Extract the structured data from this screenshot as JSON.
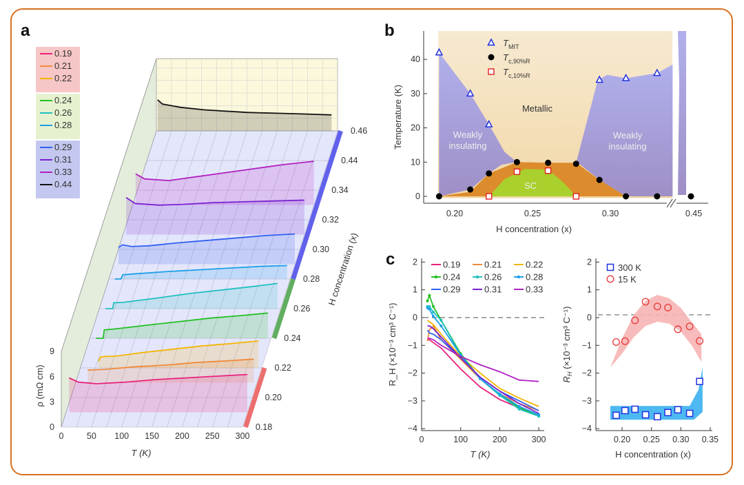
{
  "panels": {
    "a": "a",
    "b": "b",
    "c": "c"
  },
  "chart_data": [
    {
      "id": "a",
      "type": "line",
      "projection": "3d",
      "xlabel": "T (K)",
      "ylabel": "ρ (mΩ cm)",
      "zlabel": "H concentration (x)",
      "x_ticks": [
        "0",
        "50",
        "100",
        "150",
        "200",
        "250",
        "300"
      ],
      "y_ticks": [
        "0",
        "3",
        "6",
        "9"
      ],
      "z_ticks": [
        "0.18",
        "0.20",
        "0.22",
        "0.24",
        "0.26",
        "0.28",
        "0.30",
        "0.32",
        "0.34",
        "0.44",
        "0.46"
      ],
      "z_break": [
        0.34,
        0.44
      ],
      "legend_groups": [
        {
          "color": "#f7c6c6",
          "items": [
            "0.19",
            "0.21",
            "0.22"
          ]
        },
        {
          "color": "#e6f2cf",
          "items": [
            "0.24",
            "0.26",
            "0.28"
          ]
        },
        {
          "color": "#c4c8f0",
          "items": [
            "0.29",
            "0.31",
            "0.33",
            "0.44"
          ]
        }
      ],
      "series": [
        {
          "name": "0.19",
          "x_conc": 0.19,
          "color": "#e8207a",
          "T": [
            5,
            20,
            50,
            100,
            150,
            200,
            250,
            300
          ],
          "rho": [
            4.1,
            3.6,
            3.4,
            3.6,
            3.9,
            4.1,
            4.3,
            4.5
          ]
        },
        {
          "name": "0.21",
          "x_conc": 0.21,
          "color": "#f08a3a",
          "T": [
            20,
            50,
            100,
            150,
            200,
            250,
            295
          ],
          "rho": [
            1.5,
            1.6,
            1.9,
            2.1,
            2.4,
            2.6,
            2.8
          ]
        },
        {
          "name": "0.22",
          "x_conc": 0.22,
          "color": "#f5b400",
          "T": [
            30,
            34,
            40,
            60,
            100,
            150,
            200,
            250,
            295
          ],
          "rho": [
            0.8,
            1.3,
            1.35,
            1.4,
            1.8,
            2.2,
            2.6,
            2.9,
            3.2
          ]
        },
        {
          "name": "0.24",
          "x_conc": 0.24,
          "color": "#22c022",
          "T": [
            10,
            22,
            24,
            40,
            100,
            150,
            200,
            250,
            295
          ],
          "rho": [
            0,
            0,
            1.0,
            1.1,
            1.6,
            2.0,
            2.4,
            2.7,
            3.0
          ]
        },
        {
          "name": "0.26",
          "x_conc": 0.26,
          "color": "#20c0c0",
          "T": [
            10,
            22,
            24,
            40,
            100,
            150,
            200,
            250,
            295
          ],
          "rho": [
            0,
            0,
            0.7,
            0.75,
            1.3,
            1.8,
            2.2,
            2.6,
            3.0
          ]
        },
        {
          "name": "0.28",
          "x_conc": 0.28,
          "color": "#1aa0e8",
          "T": [
            10,
            20,
            23,
            40,
            100,
            150,
            200,
            250,
            295
          ],
          "rho": [
            0,
            0,
            0.5,
            0.6,
            0.9,
            1.1,
            1.3,
            1.5,
            1.6
          ]
        },
        {
          "name": "0.29",
          "x_conc": 0.29,
          "color": "#3060f0",
          "T": [
            8,
            15,
            30,
            60,
            100,
            150,
            200,
            250,
            300
          ],
          "rho": [
            2.0,
            2.3,
            2.1,
            2.2,
            2.5,
            2.8,
            3.1,
            3.4,
            3.6
          ]
        },
        {
          "name": "0.31",
          "x_conc": 0.31,
          "color": "#7a20d0",
          "T": [
            5,
            20,
            60,
            100,
            150,
            200,
            250,
            300
          ],
          "rho": [
            4.4,
            3.7,
            3.5,
            3.6,
            3.8,
            3.9,
            4.0,
            4.1
          ]
        },
        {
          "name": "0.33",
          "x_conc": 0.33,
          "color": "#b020c0",
          "T": [
            5,
            20,
            60,
            100,
            150,
            200,
            250,
            300
          ],
          "rho": [
            3.7,
            3.1,
            2.9,
            3.3,
            3.8,
            4.3,
            4.8,
            5.2
          ]
        },
        {
          "name": "0.44",
          "x_conc": 0.44,
          "color": "#111111",
          "T": [
            2,
            10,
            40,
            80,
            150,
            200,
            250,
            290
          ],
          "rho": [
            3.7,
            3.2,
            2.8,
            2.5,
            2.2,
            2.1,
            2.0,
            1.9
          ]
        }
      ],
      "axis_band_colors": {
        "0.18-0.22": "#e84a4a",
        "0.22-0.28": "#3a9a3a",
        "0.28-0.46": "#3a3ae8"
      }
    },
    {
      "id": "b",
      "type": "scatter",
      "xlabel": "H concentration (x)",
      "ylabel": "Temperature (K)",
      "x_ticks": [
        "0.20",
        "0.25",
        "0.30",
        "0.45"
      ],
      "y_ticks": [
        "0",
        "10",
        "20",
        "30",
        "40"
      ],
      "ylim": [
        -2,
        48
      ],
      "x_break": [
        0.34,
        0.44
      ],
      "legend_placement": "top-left",
      "region_labels": {
        "metallic": "Metallic",
        "weak_left": [
          "Weakly",
          "insulating"
        ],
        "weak_right": [
          "Weakly",
          "insulating"
        ],
        "sc": "SC"
      },
      "series": [
        {
          "name": "T_MIT",
          "label_main": "T",
          "label_sub": "MIT",
          "marker": "open-triangle",
          "color": "#2030e0",
          "x": [
            0.19,
            0.21,
            0.222,
            0.293,
            0.31,
            0.33
          ],
          "y": [
            42,
            30,
            21,
            34,
            34.5,
            36
          ]
        },
        {
          "name": "T_c,90%R",
          "label_main": "T",
          "label_sub": "c,90%R",
          "marker": "filled-circle",
          "color": "#000000",
          "x": [
            0.19,
            0.21,
            0.222,
            0.24,
            0.26,
            0.278,
            0.293,
            0.31,
            0.33,
            0.44
          ],
          "y": [
            0,
            2,
            6.7,
            10,
            9.8,
            9.5,
            4.8,
            0,
            0,
            0
          ]
        },
        {
          "name": "T_c,10%R",
          "label_main": "T",
          "label_sub": "c,10%R",
          "marker": "open-square",
          "color": "#e02020",
          "x": [
            0.222,
            0.24,
            0.26,
            0.278
          ],
          "y": [
            0,
            7.2,
            7.5,
            0
          ]
        }
      ],
      "regions": {
        "metallic_color": "#f1d7a6",
        "insulating_color": "#a7a3dc",
        "fluct_color": "#dc8c2c",
        "sc_color": "#a9d02c",
        "insulating_left": [
          [
            0.19,
            42
          ],
          [
            0.21,
            30
          ],
          [
            0.222,
            21
          ],
          [
            0.232,
            13
          ],
          [
            0.24,
            10
          ],
          [
            0.23,
            9.2
          ],
          [
            0.222,
            6.7
          ],
          [
            0.21,
            2
          ],
          [
            0.19,
            0
          ]
        ],
        "insulating_right": [
          [
            0.278,
            9.8
          ],
          [
            0.285,
            22
          ],
          [
            0.292,
            34
          ],
          [
            0.298,
            35.5
          ],
          [
            0.31,
            34.5
          ],
          [
            0.33,
            36
          ],
          [
            0.34,
            38.5
          ],
          [
            0.34,
            0
          ],
          [
            0.31,
            0
          ],
          [
            0.293,
            4.8
          ],
          [
            0.28,
            9.5
          ]
        ],
        "fluct": [
          [
            0.19,
            0
          ],
          [
            0.21,
            1.3
          ],
          [
            0.222,
            6.7
          ],
          [
            0.24,
            10
          ],
          [
            0.26,
            9.8
          ],
          [
            0.278,
            9.8
          ],
          [
            0.293,
            4.8
          ],
          [
            0.31,
            0
          ]
        ],
        "sc": [
          [
            0.222,
            0
          ],
          [
            0.232,
            5
          ],
          [
            0.245,
            8
          ],
          [
            0.26,
            7.8
          ],
          [
            0.27,
            4
          ],
          [
            0.278,
            0
          ]
        ]
      }
    },
    {
      "id": "c-left",
      "type": "line",
      "xlabel": "T (K)",
      "ylabel": "R_H (×10⁻³ cm³ C⁻¹)",
      "ylabel_main": "R",
      "ylabel_sub": "H",
      "ylabel_rest": " (×10⁻³ cm³ C⁻¹)",
      "x_ticks": [
        "0",
        "100",
        "200",
        "300"
      ],
      "y_ticks": [
        "-4",
        "-3",
        "-2",
        "-1",
        "0",
        "1",
        "2"
      ],
      "xlim": [
        0,
        300
      ],
      "ylim": [
        -4,
        2.1
      ],
      "reference_line": 0,
      "legend_placement": "top",
      "x": [
        15,
        20,
        30,
        50,
        100,
        150,
        200,
        250,
        300
      ],
      "series": [
        {
          "name": "0.19",
          "color": "#e8207a",
          "values": [
            -0.8,
            -0.8,
            -0.9,
            -1.1,
            -1.85,
            -2.5,
            -2.95,
            -3.25,
            -3.5
          ]
        },
        {
          "name": "0.21",
          "color": "#f08a3a",
          "values": [
            -0.85,
            -0.45,
            -0.3,
            -0.8,
            -1.5,
            -2.2,
            -2.75,
            -3.1,
            -3.35
          ]
        },
        {
          "name": "0.22",
          "color": "#f5b400",
          "values": [
            -0.1,
            -0.15,
            -0.25,
            -0.6,
            -1.4,
            -2.0,
            -2.55,
            -2.9,
            -3.2
          ]
        },
        {
          "name": "0.24",
          "color": "#22c022",
          "marker": "dot",
          "values": [
            0.6,
            0.8,
            0.4,
            -0.1,
            -1.3,
            -2.2,
            -2.8,
            -3.25,
            -3.55
          ]
        },
        {
          "name": "0.26",
          "color": "#20c0c0",
          "marker": "dot",
          "values": [
            0.4,
            0.4,
            0.2,
            -0.1,
            -1.35,
            -2.2,
            -2.8,
            -3.3,
            -3.55
          ]
        },
        {
          "name": "0.28",
          "color": "#1aa0e8",
          "marker": "dot",
          "values": [
            0.35,
            0.3,
            0.05,
            -0.3,
            -1.35,
            -2.2,
            -2.75,
            -3.2,
            -3.5
          ]
        },
        {
          "name": "0.29",
          "color": "#3060f0",
          "values": [
            -0.45,
            -0.55,
            -0.6,
            -0.8,
            -1.45,
            -2.15,
            -2.65,
            -3.0,
            -3.35
          ]
        },
        {
          "name": "0.31",
          "color": "#7a20d0",
          "values": [
            -0.3,
            -0.3,
            -0.4,
            -0.7,
            -1.45,
            -2.15,
            -2.65,
            -3.1,
            -3.45
          ]
        },
        {
          "name": "0.33",
          "color": "#b020c0",
          "values": [
            -0.75,
            -0.75,
            -0.8,
            -1.0,
            -1.4,
            -1.7,
            -1.95,
            -2.25,
            -2.3
          ]
        }
      ]
    },
    {
      "id": "c-right",
      "type": "scatter",
      "xlabel": "H concentration (x)",
      "ylabel_main": "R",
      "ylabel_sub": "H",
      "ylabel_rest": " (×10⁻³ cm³ C⁻¹)",
      "x_ticks": [
        "0.20",
        "0.25",
        "0.30",
        "0.35"
      ],
      "y_ticks": [
        "-4",
        "-3",
        "-2",
        "-1",
        "0",
        "1",
        "2"
      ],
      "xlim": [
        0.165,
        0.35
      ],
      "ylim": [
        -4,
        2.1
      ],
      "reference_line": 0.1,
      "legend_placement": "top-left",
      "series": [
        {
          "name": "300 K",
          "marker": "open-square",
          "color": "#2030e0",
          "band_color": "#3ab0f0",
          "x": [
            0.19,
            0.205,
            0.222,
            0.24,
            0.26,
            0.278,
            0.295,
            0.315,
            0.332
          ],
          "y": [
            -3.52,
            -3.35,
            -3.3,
            -3.5,
            -3.57,
            -3.42,
            -3.32,
            -3.45,
            -2.3
          ]
        },
        {
          "name": "15 K",
          "marker": "open-circle",
          "color": "#e84040",
          "band_color": "#f7b4b4",
          "x": [
            0.19,
            0.205,
            0.222,
            0.24,
            0.26,
            0.278,
            0.295,
            0.315,
            0.332
          ],
          "y": [
            -0.88,
            -0.85,
            -0.1,
            0.57,
            0.4,
            0.36,
            -0.42,
            -0.32,
            -0.84
          ]
        }
      ]
    }
  ]
}
